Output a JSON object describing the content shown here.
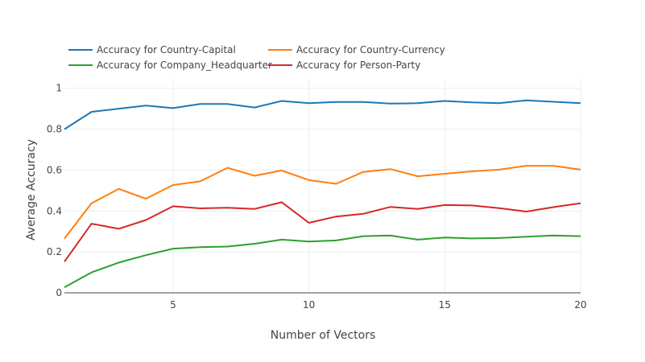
{
  "chart_data": {
    "type": "line",
    "xlabel": "Number of Vectors",
    "ylabel": "Average Accuracy",
    "xlim": [
      1,
      20
    ],
    "ylim": [
      0,
      1.05
    ],
    "x_ticks": [
      5,
      10,
      15,
      20
    ],
    "y_ticks": [
      0,
      0.2,
      0.4,
      0.6,
      0.8,
      1
    ],
    "y_tick_labels": [
      "0",
      "0.2",
      "0.4",
      "0.6",
      "0.8",
      "1"
    ],
    "grid": true,
    "legend_position": "top-left, two columns",
    "x": [
      1,
      2,
      3,
      4,
      5,
      6,
      7,
      8,
      9,
      10,
      11,
      12,
      13,
      14,
      15,
      16,
      17,
      18,
      19,
      20
    ],
    "series": [
      {
        "name": "Accuracy for Country-Capital",
        "color": "#1f77b4",
        "values": [
          0.8,
          0.885,
          0.9,
          0.915,
          0.903,
          0.923,
          0.923,
          0.906,
          0.938,
          0.927,
          0.933,
          0.933,
          0.925,
          0.927,
          0.938,
          0.931,
          0.927,
          0.941,
          0.934,
          0.927
        ]
      },
      {
        "name": "Accuracy for Country-Currency",
        "color": "#ff7f0e",
        "values": [
          0.265,
          0.438,
          0.508,
          0.46,
          0.527,
          0.545,
          0.611,
          0.572,
          0.598,
          0.551,
          0.533,
          0.591,
          0.605,
          0.57,
          0.582,
          0.594,
          0.602,
          0.621,
          0.621,
          0.602
        ]
      },
      {
        "name": "Accuracy for Company_Headquarter",
        "color": "#2ca02c",
        "values": [
          0.027,
          0.1,
          0.148,
          0.184,
          0.216,
          0.223,
          0.226,
          0.24,
          0.26,
          0.251,
          0.256,
          0.277,
          0.28,
          0.26,
          0.27,
          0.266,
          0.268,
          0.274,
          0.28,
          0.277
        ]
      },
      {
        "name": "Accuracy for Person-Party",
        "color": "#d62728",
        "values": [
          0.152,
          0.338,
          0.313,
          0.356,
          0.423,
          0.413,
          0.416,
          0.41,
          0.443,
          0.342,
          0.373,
          0.386,
          0.42,
          0.41,
          0.429,
          0.427,
          0.414,
          0.397,
          0.419,
          0.438
        ]
      }
    ]
  }
}
